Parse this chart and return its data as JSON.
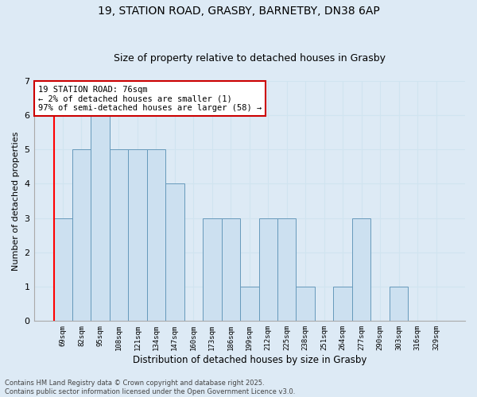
{
  "title_line1": "19, STATION ROAD, GRASBY, BARNETBY, DN38 6AP",
  "title_line2": "Size of property relative to detached houses in Grasby",
  "xlabel": "Distribution of detached houses by size in Grasby",
  "ylabel": "Number of detached properties",
  "categories": [
    "69sqm",
    "82sqm",
    "95sqm",
    "108sqm",
    "121sqm",
    "134sqm",
    "147sqm",
    "160sqm",
    "173sqm",
    "186sqm",
    "199sqm",
    "212sqm",
    "225sqm",
    "238sqm",
    "251sqm",
    "264sqm",
    "277sqm",
    "290sqm",
    "303sqm",
    "316sqm",
    "329sqm"
  ],
  "values": [
    3,
    5,
    6,
    5,
    5,
    5,
    4,
    0,
    3,
    3,
    1,
    3,
    3,
    1,
    0,
    1,
    3,
    0,
    1,
    0,
    0
  ],
  "bar_color": "#cce0f0",
  "bar_edge_color": "#6699bb",
  "grid_color": "#d0e4f0",
  "annotation_box_color": "#ffffff",
  "annotation_border_color": "#cc0000",
  "annotation_text_line1": "19 STATION ROAD: 76sqm",
  "annotation_text_line2": "← 2% of detached houses are smaller (1)",
  "annotation_text_line3": "97% of semi-detached houses are larger (58) →",
  "ylim": [
    0,
    7
  ],
  "yticks": [
    0,
    1,
    2,
    3,
    4,
    5,
    6,
    7
  ],
  "footer_text": "Contains HM Land Registry data © Crown copyright and database right 2025.\nContains public sector information licensed under the Open Government Licence v3.0.",
  "background_color": "#ddeaf5",
  "annotation_fontsize": 7.5,
  "title_fontsize1": 10,
  "title_fontsize2": 9,
  "red_line_index": -0.48
}
